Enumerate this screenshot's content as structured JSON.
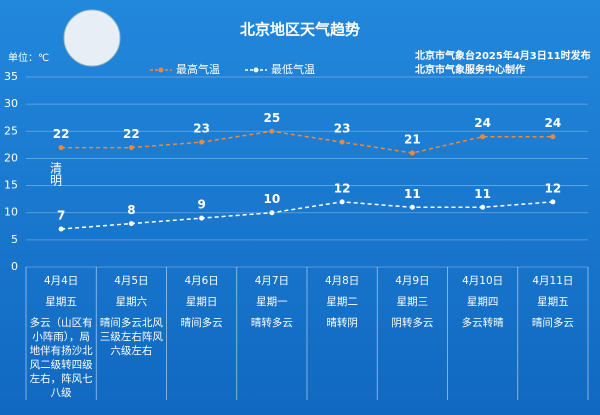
{
  "header": {
    "issued": "北京市气象台2025年4月3日11时发布",
    "producer": "北京市气象服务中心制作",
    "unit": "单位：℃"
  },
  "chart_data": {
    "type": "line",
    "title": "北京地区天气趋势",
    "categories": [
      "4月4日",
      "4月5日",
      "4月6日",
      "4月7日",
      "4月8日",
      "4月9日",
      "4月10日",
      "4月11日"
    ],
    "weekdays": [
      "星期五",
      "星期六",
      "星期日",
      "星期一",
      "星期二",
      "星期三",
      "星期四",
      "星期五"
    ],
    "weather": [
      "多云（山区有小阵雨），局地伴有扬沙北风二级转四级左右，阵风七八级",
      "晴间多云北风三级左右阵风六级左右",
      "晴间多云",
      "晴转多云",
      "晴转阴",
      "阴转多云",
      "多云转晴",
      "晴间多云"
    ],
    "series": [
      {
        "name": "最高气温",
        "color": "#f0883a",
        "values": [
          22,
          22,
          23,
          25,
          23,
          21,
          24,
          24
        ]
      },
      {
        "name": "最低气温",
        "color": "#ffffff",
        "values": [
          7,
          8,
          9,
          10,
          12,
          11,
          11,
          12
        ]
      }
    ],
    "annotation": "清明",
    "ylim": [
      0,
      35
    ],
    "yticks": [
      0,
      5,
      10,
      15,
      20,
      25,
      30,
      35
    ],
    "grid": true
  }
}
